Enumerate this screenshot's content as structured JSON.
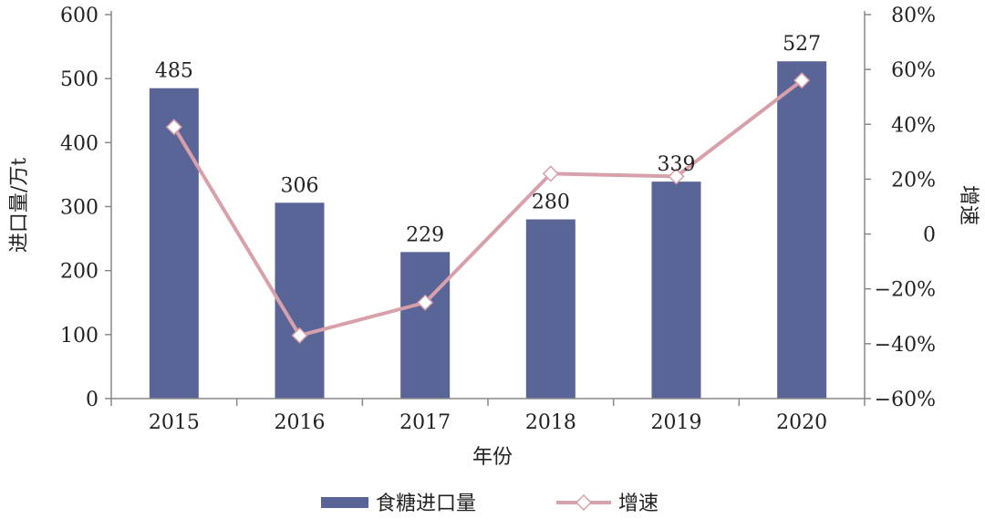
{
  "chart_data": {
    "type": "bar",
    "categories": [
      "2015",
      "2016",
      "2017",
      "2018",
      "2019",
      "2020"
    ],
    "series": [
      {
        "name": "食糖进口量",
        "type": "bar",
        "axis": "left",
        "values": [
          485,
          306,
          229,
          280,
          339,
          527
        ],
        "data_labels": [
          "485",
          "306",
          "229",
          "280",
          "339",
          "527"
        ],
        "color": "#5a6597"
      },
      {
        "name": "增速",
        "type": "line",
        "axis": "right",
        "values": [
          39,
          -37,
          -25,
          22,
          21,
          56
        ],
        "color": "#d7a0aa"
      }
    ],
    "xlabel": "年份",
    "ylabel_left": "进口量/万t",
    "ylabel_right": "增速",
    "ylim_left": [
      0,
      600
    ],
    "yticks_left": [
      "0",
      "100",
      "200",
      "300",
      "400",
      "500",
      "600"
    ],
    "ylim_right": [
      -60,
      80
    ],
    "yticks_right": [
      "−60%",
      "−40%",
      "−20%",
      "0",
      "20%",
      "40%",
      "60%",
      "80%"
    ],
    "grid": false,
    "legend_position": "bottom"
  }
}
